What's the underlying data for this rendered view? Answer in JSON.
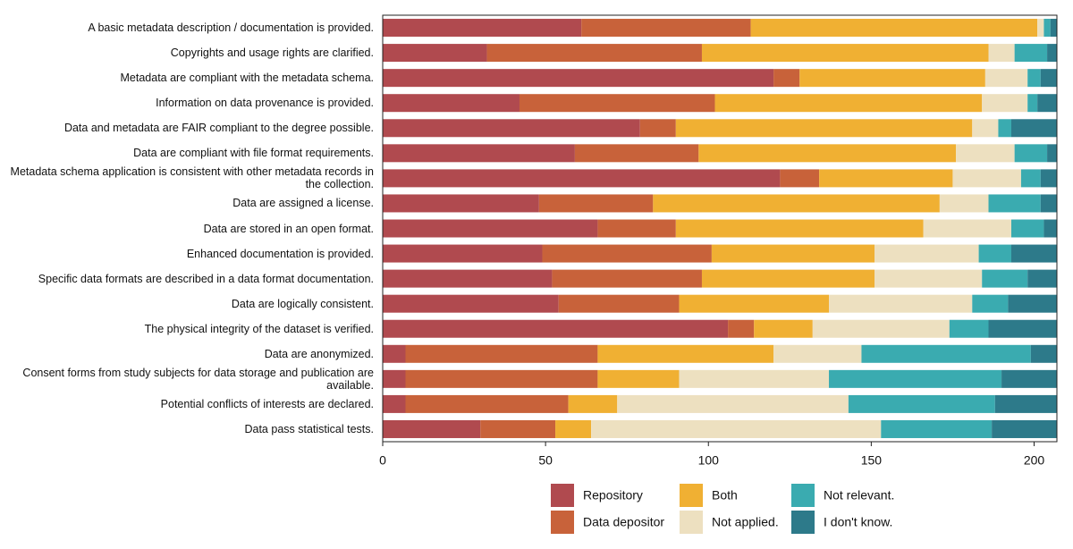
{
  "chart_data": {
    "type": "bar",
    "orientation": "horizontal",
    "stacked": true,
    "categories": [
      "A basic metadata description / documentation is provided.",
      "Copyrights and usage rights are clarified.",
      "Metadata are compliant with the metadata schema.",
      "Information on data provenance is provided.",
      "Data and metadata are FAIR compliant to the degree possible.",
      "Data are compliant with file format requirements.",
      "Metadata schema application is consistent with other metadata records in the collection.",
      "Data are assigned a license.",
      "Data are stored in an open format.",
      "Enhanced documentation is provided.",
      "Specific data formats are described in a data format documentation.",
      "Data are logically consistent.",
      "The physical integrity of the dataset is verified.",
      "Data are anonymized.",
      "Consent forms from study subjects for data storage and publication are available.",
      "Potential conflicts of interests are declared.",
      "Data pass statistical tests."
    ],
    "series": [
      {
        "name": "Repository",
        "color": "#b04a4f",
        "values": [
          61,
          32,
          120,
          42,
          79,
          59,
          122,
          48,
          66,
          49,
          52,
          54,
          106,
          7,
          7,
          7,
          30
        ]
      },
      {
        "name": "Data depositor",
        "color": "#c8623a",
        "values": [
          52,
          66,
          8,
          60,
          11,
          38,
          12,
          35,
          24,
          52,
          46,
          37,
          8,
          59,
          59,
          50,
          23
        ]
      },
      {
        "name": "Both",
        "color": "#f0b033",
        "values": [
          88,
          88,
          57,
          82,
          91,
          79,
          41,
          88,
          76,
          50,
          53,
          46,
          18,
          54,
          25,
          15,
          11
        ]
      },
      {
        "name": "Not applied.",
        "color": "#ede0c0",
        "values": [
          2,
          8,
          13,
          14,
          8,
          18,
          21,
          15,
          27,
          32,
          33,
          44,
          42,
          27,
          46,
          71,
          89
        ]
      },
      {
        "name": "Not relevant.",
        "color": "#3aabb0",
        "values": [
          2,
          10,
          4,
          3,
          4,
          10,
          6,
          16,
          10,
          10,
          14,
          11,
          12,
          52,
          53,
          45,
          34
        ]
      },
      {
        "name": "I don't know.",
        "color": "#2d7a8a",
        "values": [
          2,
          3,
          5,
          6,
          14,
          3,
          5,
          5,
          4,
          14,
          9,
          15,
          21,
          8,
          17,
          19,
          20
        ]
      }
    ],
    "xlim": [
      0,
      207
    ],
    "xticks": [
      0,
      50,
      100,
      150,
      200
    ]
  }
}
